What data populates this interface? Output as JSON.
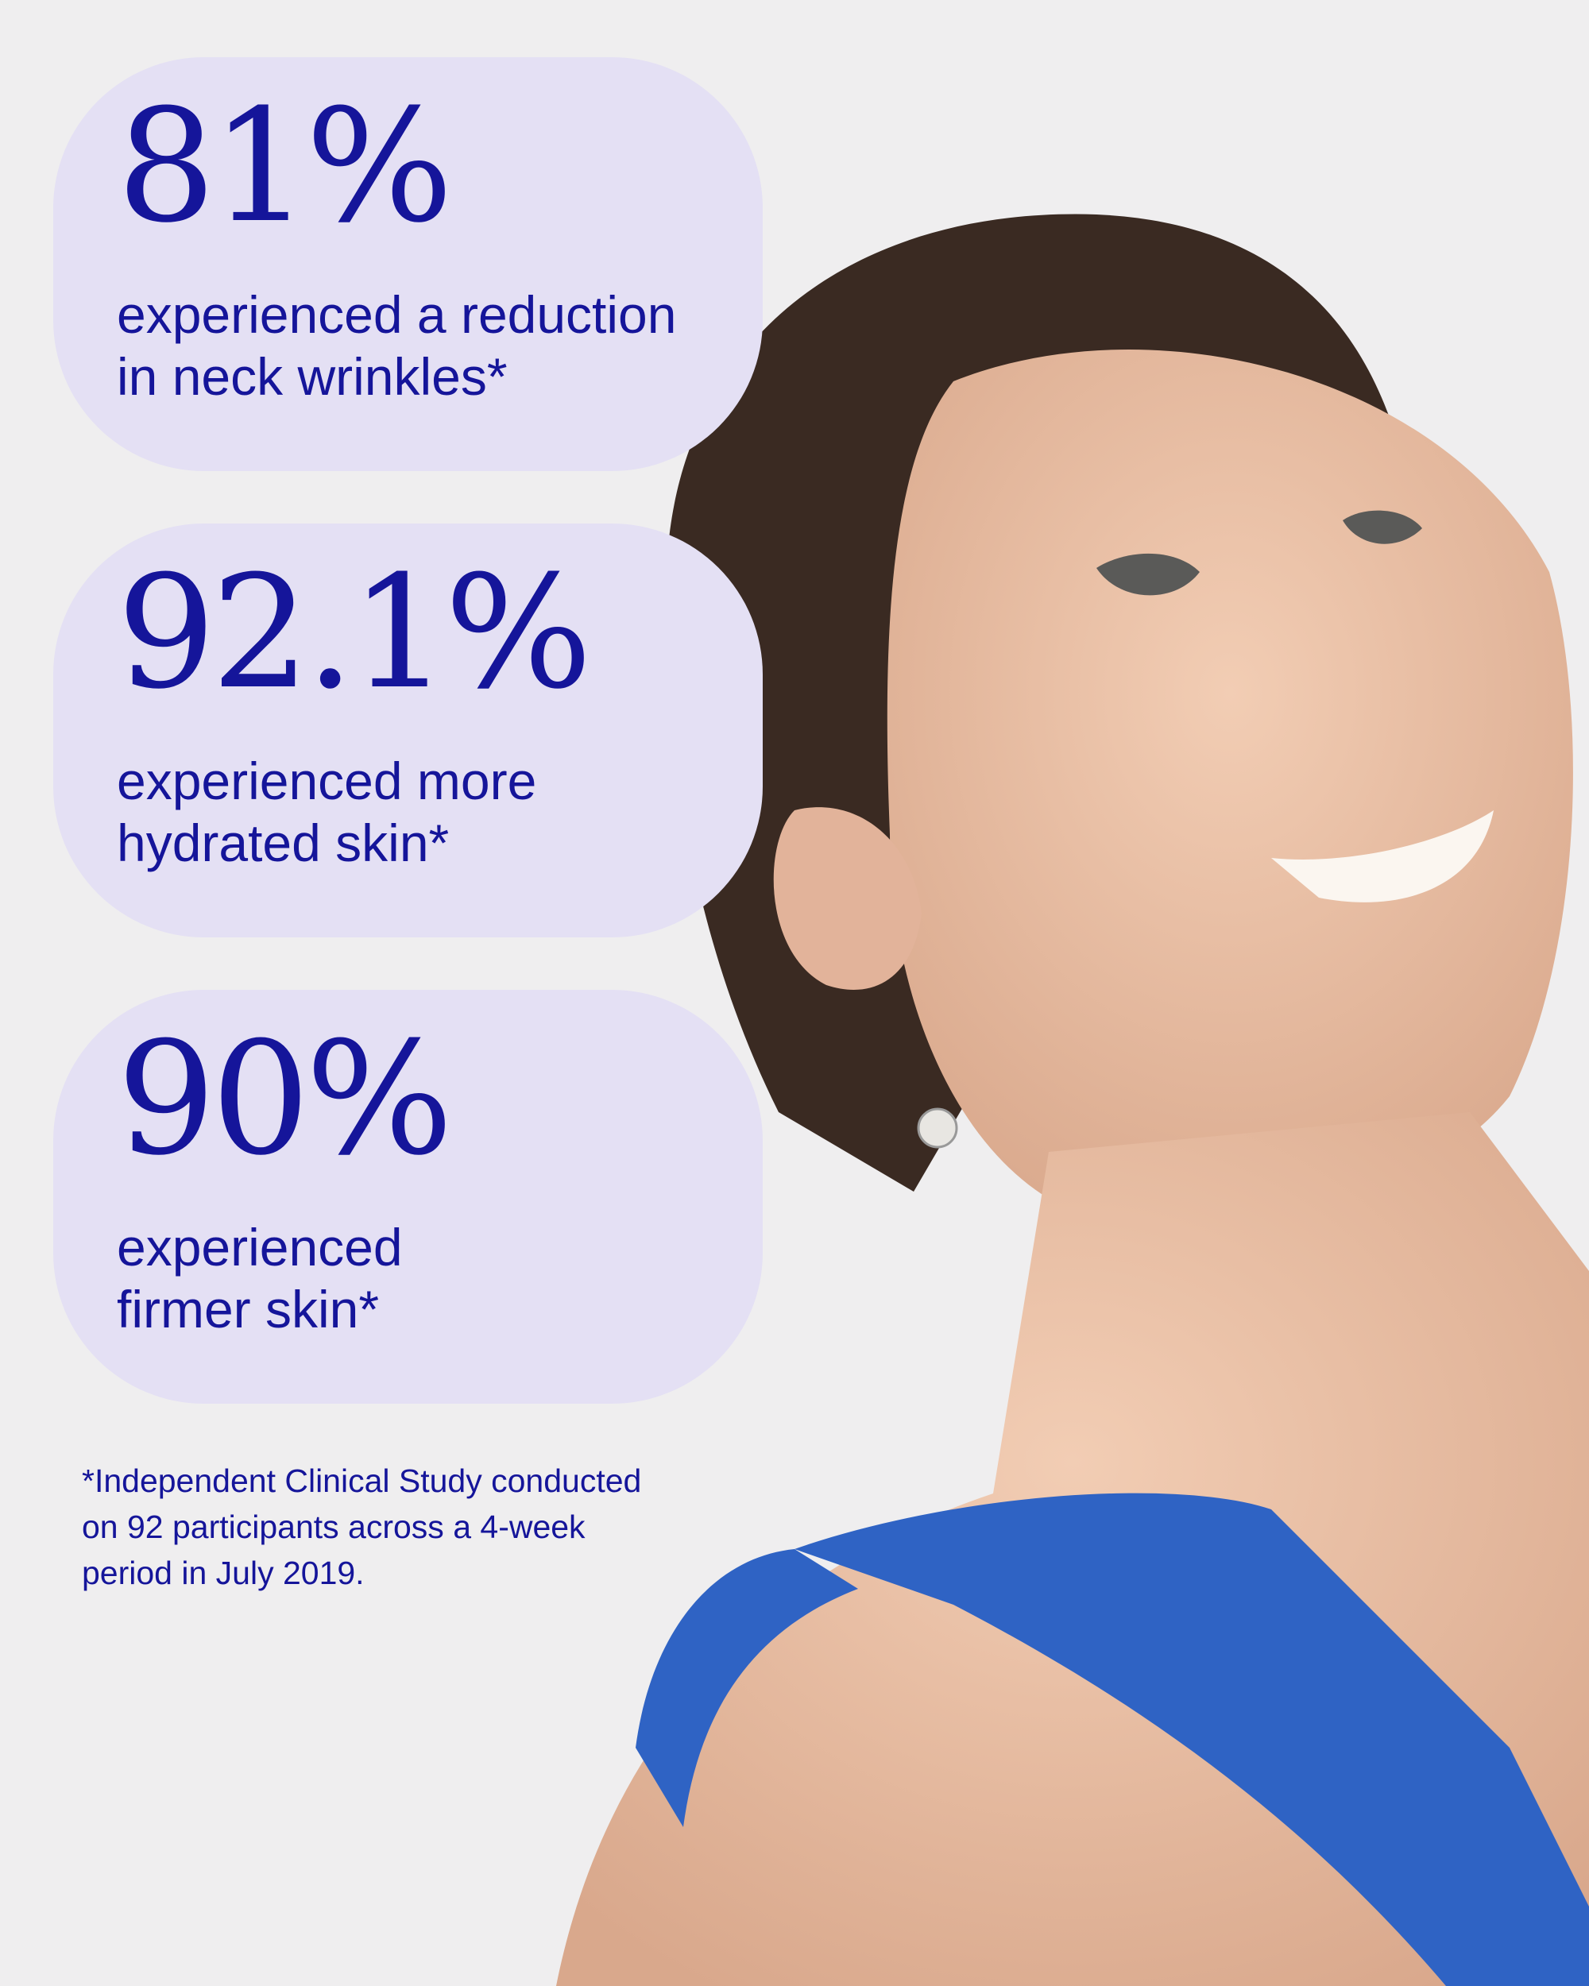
{
  "stats": [
    {
      "value": "81%",
      "description": [
        "experienced a reduction",
        "in neck wrinkles*"
      ]
    },
    {
      "value": "92.1%",
      "description": [
        "experienced more",
        "hydrated skin*"
      ]
    },
    {
      "value": "90%",
      "description": [
        "experienced",
        "firmer skin*"
      ]
    }
  ],
  "footnote": [
    "*Independent Clinical Study conducted",
    "on 92 participants across a 4-week",
    "period in July 2019."
  ]
}
